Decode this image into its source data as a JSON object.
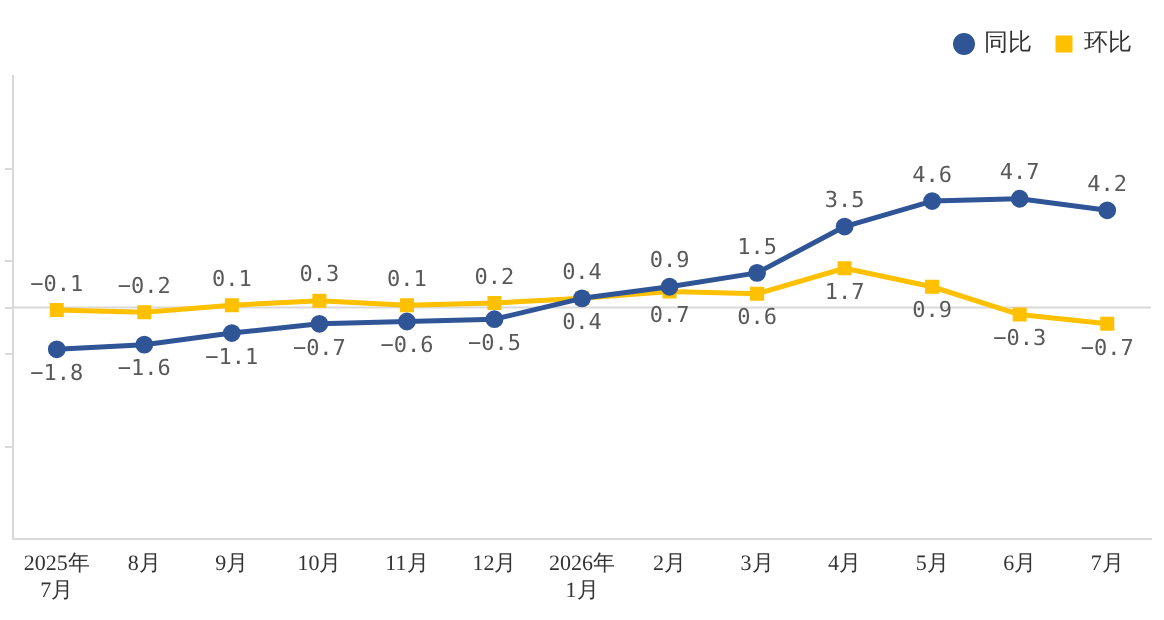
{
  "chart_data": {
    "type": "line",
    "categories": [
      "2025年7月",
      "8月",
      "9月",
      "10月",
      "11月",
      "12月",
      "2026年1月",
      "2月",
      "3月",
      "4月",
      "5月",
      "6月",
      "7月"
    ],
    "series": [
      {
        "name": "同比",
        "color": "#2f5597",
        "marker": "circle",
        "values": [
          -1.8,
          -1.6,
          -1.1,
          -0.7,
          -0.6,
          -0.5,
          0.4,
          0.9,
          1.5,
          3.5,
          4.6,
          4.7,
          4.2
        ]
      },
      {
        "name": "环比",
        "color": "#ffc000",
        "marker": "square",
        "values": [
          -0.1,
          -0.2,
          0.1,
          0.3,
          0.1,
          0.2,
          0.4,
          0.7,
          0.6,
          1.7,
          0.9,
          -0.3,
          -0.7
        ]
      }
    ],
    "ylim": [
      -10,
      10
    ],
    "yticks": [
      {
        "value": -6,
        "label": null
      },
      {
        "value": -2,
        "label": null
      },
      {
        "value": 0,
        "label": null
      },
      {
        "value": 2,
        "label": null
      },
      {
        "value": 6,
        "label": null
      }
    ],
    "tick_labels": "x",
    "data_labels": true,
    "legend": "top right",
    "grid": false,
    "line_style": "solid",
    "ref_lines": [
      {
        "axis": "y",
        "value": 0,
        "color": "#d9d9d9"
      }
    ]
  }
}
